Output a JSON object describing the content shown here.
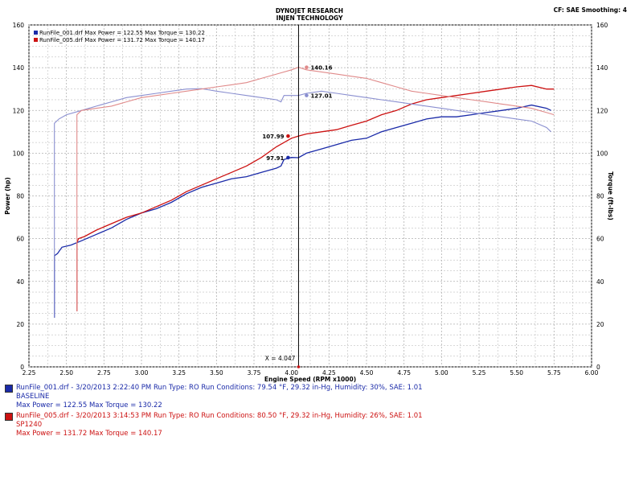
{
  "header": {
    "title_line1": "DYNOJET RESEARCH",
    "title_line2": "INJEN TECHNOLOGY",
    "cf_label": "CF: SAE  Smoothing: 4"
  },
  "colors": {
    "baseline": "#1a2aa8",
    "sp1240": "#cc1111",
    "baseline_torque": "#8a8fd0",
    "sp1240_torque": "#e08a8a",
    "grid": "#b0b0b0"
  },
  "chart_data": {
    "type": "line",
    "xlabel": "Engine Speed (RPM x1000)",
    "ylabel_left": "Power (hp)",
    "ylabel_right": "Torque (ft-lbs)",
    "xlim": [
      2.25,
      6.0
    ],
    "ylim": [
      0,
      160
    ],
    "x_ticks": [
      "2.25",
      "2.50",
      "2.75",
      "3.00",
      "3.25",
      "3.50",
      "3.75",
      "4.00",
      "4.25",
      "4.50",
      "4.75",
      "5.00",
      "5.25",
      "5.50",
      "5.75",
      "6.00"
    ],
    "y_ticks": [
      "0",
      "20",
      "40",
      "60",
      "80",
      "100",
      "120",
      "140",
      "160"
    ],
    "legend": [
      "RunFile_001.drf Max Power = 122.55    Max Torque = 130.22",
      "RunFile_005.drf Max Power = 131.72    Max Torque = 140.17"
    ],
    "cursor": {
      "x": 4.047,
      "label": "X = 4.047"
    },
    "cursor_labels": [
      "140.16",
      "127.01",
      "107.99",
      "97.91"
    ],
    "cursor_values": [
      140.16,
      127.01,
      107.99,
      97.91
    ],
    "series": [
      {
        "name": "RunFile_001.drf Power",
        "kind": "power",
        "run": "baseline",
        "points": [
          [
            2.42,
            23
          ],
          [
            2.42,
            52
          ],
          [
            2.44,
            53
          ],
          [
            2.47,
            56
          ],
          [
            2.53,
            57
          ],
          [
            2.6,
            59
          ],
          [
            2.7,
            62
          ],
          [
            2.8,
            65
          ],
          [
            2.9,
            69
          ],
          [
            3.0,
            72
          ],
          [
            3.1,
            74
          ],
          [
            3.2,
            77
          ],
          [
            3.3,
            81
          ],
          [
            3.4,
            84
          ],
          [
            3.5,
            86
          ],
          [
            3.6,
            88
          ],
          [
            3.7,
            89
          ],
          [
            3.8,
            91
          ],
          [
            3.9,
            93
          ],
          [
            3.93,
            94
          ],
          [
            3.95,
            97
          ],
          [
            4.0,
            98
          ],
          [
            4.047,
            97.9
          ],
          [
            4.1,
            100
          ],
          [
            4.2,
            102
          ],
          [
            4.3,
            104
          ],
          [
            4.4,
            106
          ],
          [
            4.5,
            107
          ],
          [
            4.6,
            110
          ],
          [
            4.7,
            112
          ],
          [
            4.8,
            114
          ],
          [
            4.9,
            116
          ],
          [
            5.0,
            117
          ],
          [
            5.1,
            117
          ],
          [
            5.2,
            118
          ],
          [
            5.3,
            119
          ],
          [
            5.4,
            120
          ],
          [
            5.5,
            121
          ],
          [
            5.6,
            122.5
          ],
          [
            5.7,
            121
          ],
          [
            5.73,
            120
          ]
        ]
      },
      {
        "name": "RunFile_005.drf Power",
        "kind": "power",
        "run": "sp1240",
        "points": [
          [
            2.57,
            26
          ],
          [
            2.57,
            58
          ],
          [
            2.58,
            60
          ],
          [
            2.62,
            61
          ],
          [
            2.7,
            64
          ],
          [
            2.8,
            67
          ],
          [
            2.9,
            70
          ],
          [
            3.0,
            72
          ],
          [
            3.1,
            75
          ],
          [
            3.2,
            78
          ],
          [
            3.3,
            82
          ],
          [
            3.4,
            85
          ],
          [
            3.5,
            88
          ],
          [
            3.6,
            91
          ],
          [
            3.7,
            94
          ],
          [
            3.8,
            98
          ],
          [
            3.9,
            103
          ],
          [
            4.0,
            107
          ],
          [
            4.047,
            108
          ],
          [
            4.1,
            109
          ],
          [
            4.2,
            110
          ],
          [
            4.3,
            111
          ],
          [
            4.4,
            113
          ],
          [
            4.5,
            115
          ],
          [
            4.6,
            118
          ],
          [
            4.7,
            120
          ],
          [
            4.8,
            123
          ],
          [
            4.9,
            125
          ],
          [
            5.0,
            126
          ],
          [
            5.1,
            127
          ],
          [
            5.2,
            128
          ],
          [
            5.3,
            129
          ],
          [
            5.4,
            130
          ],
          [
            5.5,
            131
          ],
          [
            5.6,
            131.7
          ],
          [
            5.7,
            130
          ],
          [
            5.75,
            130
          ]
        ]
      },
      {
        "name": "RunFile_001.drf Torque",
        "kind": "torque",
        "run": "baseline",
        "points": [
          [
            2.42,
            23
          ],
          [
            2.42,
            114
          ],
          [
            2.45,
            116
          ],
          [
            2.5,
            118
          ],
          [
            2.6,
            120
          ],
          [
            2.7,
            122
          ],
          [
            2.8,
            124
          ],
          [
            2.9,
            126
          ],
          [
            3.0,
            127
          ],
          [
            3.1,
            128
          ],
          [
            3.2,
            129
          ],
          [
            3.3,
            130
          ],
          [
            3.4,
            130.2
          ],
          [
            3.5,
            129
          ],
          [
            3.6,
            128
          ],
          [
            3.7,
            127
          ],
          [
            3.8,
            126
          ],
          [
            3.9,
            125
          ],
          [
            3.93,
            124
          ],
          [
            3.95,
            127
          ],
          [
            4.0,
            127
          ],
          [
            4.047,
            127
          ],
          [
            4.1,
            128
          ],
          [
            4.2,
            129
          ],
          [
            4.3,
            128
          ],
          [
            4.4,
            127
          ],
          [
            4.5,
            126
          ],
          [
            4.6,
            125
          ],
          [
            4.7,
            124
          ],
          [
            4.8,
            123
          ],
          [
            4.9,
            122
          ],
          [
            5.0,
            121
          ],
          [
            5.1,
            120
          ],
          [
            5.2,
            119
          ],
          [
            5.3,
            118
          ],
          [
            5.4,
            117
          ],
          [
            5.5,
            116
          ],
          [
            5.6,
            115
          ],
          [
            5.7,
            112
          ],
          [
            5.73,
            110
          ]
        ]
      },
      {
        "name": "RunFile_005.drf Torque",
        "kind": "torque",
        "run": "sp1240",
        "points": [
          [
            2.57,
            26
          ],
          [
            2.57,
            118
          ],
          [
            2.6,
            120
          ],
          [
            2.7,
            121
          ],
          [
            2.8,
            122
          ],
          [
            2.9,
            124
          ],
          [
            3.0,
            126
          ],
          [
            3.1,
            127
          ],
          [
            3.2,
            128
          ],
          [
            3.3,
            129
          ],
          [
            3.4,
            130
          ],
          [
            3.5,
            131
          ],
          [
            3.6,
            132
          ],
          [
            3.7,
            133
          ],
          [
            3.8,
            135
          ],
          [
            3.9,
            137
          ],
          [
            4.0,
            139
          ],
          [
            4.047,
            140.2
          ],
          [
            4.1,
            139
          ],
          [
            4.2,
            138
          ],
          [
            4.3,
            137
          ],
          [
            4.4,
            136
          ],
          [
            4.5,
            135
          ],
          [
            4.6,
            133
          ],
          [
            4.7,
            131
          ],
          [
            4.8,
            129
          ],
          [
            4.9,
            128
          ],
          [
            5.0,
            127
          ],
          [
            5.1,
            126
          ],
          [
            5.2,
            125
          ],
          [
            5.3,
            124
          ],
          [
            5.4,
            123
          ],
          [
            5.5,
            122
          ],
          [
            5.6,
            121
          ],
          [
            5.7,
            119
          ],
          [
            5.75,
            118
          ]
        ]
      }
    ]
  },
  "runs": [
    {
      "color_key": "baseline",
      "line1": "RunFile_001.drf - 3/20/2013 2:22:40 PM  Run Type: RO  Run Conditions: 79.54 °F, 29.32 in-Hg,  Humidity:  30%, SAE: 1.01",
      "line2": "BASELINE",
      "line3": "Max Power = 122.55  Max Torque = 130.22"
    },
    {
      "color_key": "sp1240",
      "line1": "RunFile_005.drf - 3/20/2013 3:14:53 PM  Run Type: RO  Run Conditions: 80.50 °F, 29.32 in-Hg,  Humidity:  26%, SAE: 1.01",
      "line2": "SP1240",
      "line3": "Max Power = 131.72  Max Torque = 140.17"
    }
  ]
}
